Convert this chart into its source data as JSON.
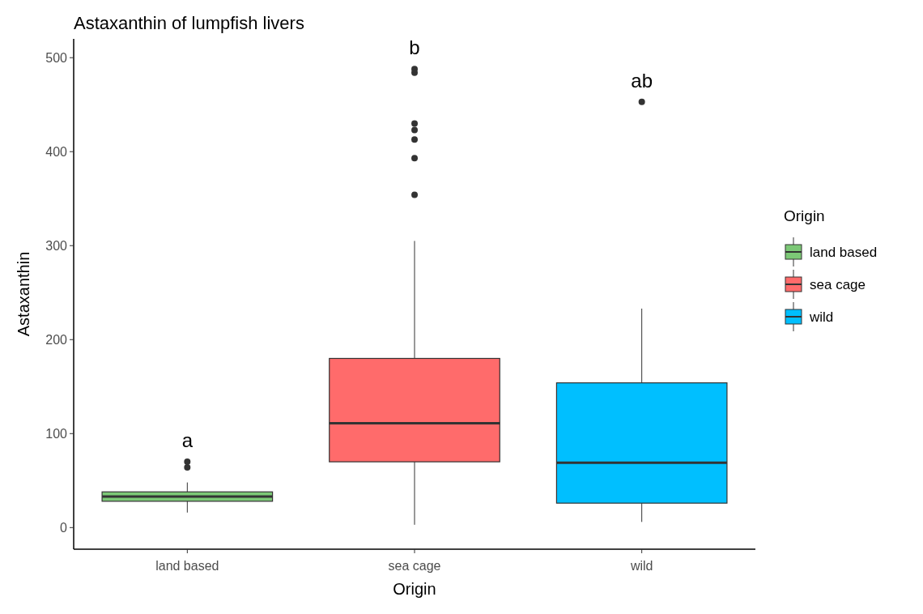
{
  "chart_data": {
    "type": "box",
    "title": "Astaxanthin of lumpfish livers",
    "xlabel": "Origin",
    "ylabel": "Astaxanthin",
    "legend_title": "Origin",
    "categories": [
      "land based",
      "sea cage",
      "wild"
    ],
    "series": [
      {
        "name": "land based",
        "color": "#7cc876",
        "boxes": [
          {
            "low": 16,
            "q1": 28,
            "median": 33,
            "q3": 38,
            "high": 48,
            "outliers": [
              64,
              70
            ]
          },
          null,
          null
        ]
      },
      {
        "name": "sea cage",
        "color": "#ff6b6b",
        "boxes": [
          null,
          {
            "low": 3,
            "q1": 70,
            "median": 111,
            "q3": 180,
            "high": 305,
            "outliers": [
              354,
              393,
              413,
              423,
              430,
              484,
              488
            ]
          },
          null
        ]
      },
      {
        "name": "wild",
        "color": "#00bfff",
        "boxes": [
          null,
          null,
          {
            "low": 6,
            "q1": 26,
            "median": 69,
            "q3": 154,
            "high": 233,
            "outliers": [
              453
            ]
          }
        ]
      }
    ],
    "ylim": [
      -23,
      520
    ],
    "yticks": [
      0,
      100,
      200,
      300,
      400,
      500
    ],
    "grid": false,
    "legend": "right",
    "annotations": [
      "a",
      "b",
      "ab"
    ]
  }
}
